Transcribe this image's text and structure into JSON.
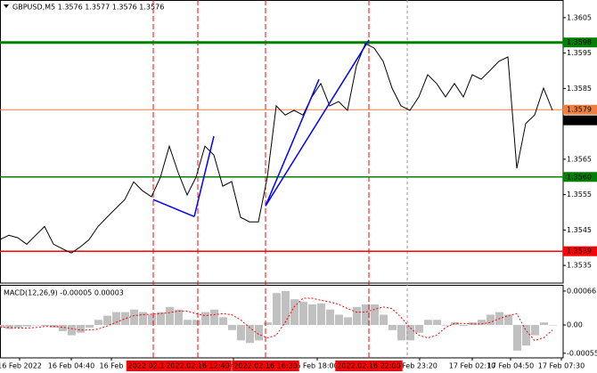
{
  "chart_data": [
    {
      "type": "line",
      "title": "GBPUSD,M5 1.3576 1.3577 1.3576 1.3576",
      "color": "#000000",
      "values": [
        1.35423,
        1.35435,
        1.35428,
        1.3541,
        1.35435,
        1.3546,
        1.3541,
        1.35397,
        1.35385,
        1.35402,
        1.35423,
        1.3546,
        1.35486,
        1.35511,
        1.35536,
        1.35586,
        1.35561,
        1.35544,
        1.35599,
        1.35687,
        1.35612,
        1.35549,
        1.35599,
        1.35687,
        1.35662,
        1.35574,
        1.35587,
        1.35486,
        1.35473,
        1.35473,
        1.35599,
        1.35801,
        1.35775,
        1.35788,
        1.35775,
        1.35826,
        1.35864,
        1.35801,
        1.35813,
        1.35788,
        1.35914,
        1.35977,
        1.35964,
        1.35927,
        1.35851,
        1.35801,
        1.35788,
        1.35826,
        1.35889,
        1.35864,
        1.35826,
        1.35864,
        1.35826,
        1.35889,
        1.35876,
        1.35901,
        1.35927,
        1.35939,
        1.35624,
        1.35751,
        1.35775,
        1.35851,
        1.35788
      ],
      "xlim": [
        0,
        63.2
      ],
      "xticks": [
        {
          "value": 2.2,
          "label": "16 Feb 2022"
        },
        {
          "value": 8,
          "label": "16 Feb 04:40"
        },
        {
          "value": 12.5,
          "label": "16 Feb"
        },
        {
          "value": 26.2,
          "label": ":40"
        },
        {
          "value": 35.6,
          "label": "6 Feb 18:00"
        },
        {
          "value": 47.1,
          "label": "Feb 23:20"
        },
        {
          "value": 53,
          "label": "17 Feb 02:10"
        },
        {
          "value": 57.3,
          "label": "17 Feb 04:50"
        },
        {
          "value": 63,
          "label": "17 Feb 07:30"
        }
      ],
      "ylim": [
        1.353,
        1.361
      ],
      "yticks": [
        1.3605,
        1.3595,
        1.3585,
        1.3565,
        1.3555,
        1.3545,
        1.3535
      ],
      "levels": [
        {
          "value": 1.3598,
          "color": "#008000"
        },
        {
          "value": 1.3579,
          "color": "#f08040"
        },
        {
          "value": 1.356,
          "label": "1.3560",
          "color": "#008000"
        },
        {
          "value": 1.3539,
          "color": "#ff0000"
        }
      ],
      "last_price": 1.3576,
      "markers": [
        {
          "value": 17.2,
          "label": "2022.02.16 1("
        },
        {
          "value": 22.2,
          "label": "2022.02.16 12:40"
        },
        {
          "value": 29.8,
          "label": "2022.02.16 16:30"
        },
        {
          "value": 41.4,
          "label": "2022.02.16 22:00"
        }
      ],
      "marker_color": "#ff0000",
      "separators": [
        45.7
      ],
      "trend_color": "#0000ff",
      "trendlines": [
        {
          "x": [
            17.2,
            21.8
          ],
          "y": [
            1.35536,
            1.35488
          ]
        },
        {
          "x": [
            21.8,
            24
          ],
          "y": [
            1.35488,
            1.35715
          ]
        },
        {
          "x": [
            29.8,
            35.8
          ],
          "y": [
            1.35518,
            1.35876
          ]
        },
        {
          "x": [
            29.8,
            41.4
          ],
          "y": [
            1.35518,
            1.35987
          ]
        }
      ]
    },
    {
      "type": "macd",
      "title": "MACD(12,26,9) -0.00005 0.00003",
      "hist_color": "#c0c0c0",
      "signal_color": "#ff0000",
      "histogram": [
        -5e-05,
        -8e-05,
        -5e-05,
        -3e-05,
        0,
        -2e-05,
        -5e-05,
        -0.00012,
        -0.0002,
        -0.00015,
        -5e-05,
        0.0001,
        0.00018,
        0.00025,
        0.00025,
        0.0003,
        0.00025,
        0.0002,
        0.00025,
        0.00035,
        0.0003,
        0.0001,
        0.0001,
        0.00025,
        0.0003,
        0.00015,
        -0.0001,
        -0.0003,
        -0.00035,
        -0.0003,
        5e-05,
        0.00062,
        0.00066,
        0.0005,
        0.00045,
        0.0004,
        0.00042,
        0.0003,
        0.0002,
        0.00015,
        0.00035,
        0.0004,
        0.0004,
        0.0002,
        -0.0001,
        -0.0003,
        -0.0003,
        -0.00015,
        0.0001,
        0.0001,
        0,
        5e-05,
        -2e-05,
        5e-05,
        0.0001,
        0.0002,
        0.00025,
        0.0002,
        -0.0005,
        -0.0004,
        -0.0002,
        5e-05,
        0
      ],
      "signal": [
        -4e-05,
        -5e-05,
        -6e-05,
        -6e-05,
        -5e-05,
        -3e-05,
        -3e-05,
        -4e-05,
        -7e-05,
        -0.0001,
        -0.0001,
        -8e-05,
        -2e-05,
        5e-05,
        0.00012,
        0.00018,
        0.0002,
        0.00021,
        0.00022,
        0.00024,
        0.00027,
        0.00027,
        0.00022,
        0.00018,
        0.0002,
        0.00022,
        0.0002,
        0.0001,
        -5e-05,
        -0.00018,
        -0.00025,
        -0.0002,
        5e-05,
        0.00035,
        0.00052,
        0.00052,
        0.00048,
        0.00045,
        0.0004,
        0.00032,
        0.00025,
        0.00025,
        0.0003,
        0.00035,
        0.00032,
        0.00015,
        -5e-05,
        -0.0002,
        -0.00025,
        -0.0002,
        -5e-05,
        3e-05,
        3e-05,
        2e-05,
        2e-05,
        5e-05,
        0.00012,
        0.00018,
        0.00022,
        -0.0001,
        -0.0003,
        -0.00025,
        -0.0001
      ],
      "ylim": [
        -0.00064,
        0.00078
      ],
      "yticks": [
        0.00066,
        {
          "value": 0,
          "label": "0.00"
        },
        -0.00055
      ]
    }
  ]
}
